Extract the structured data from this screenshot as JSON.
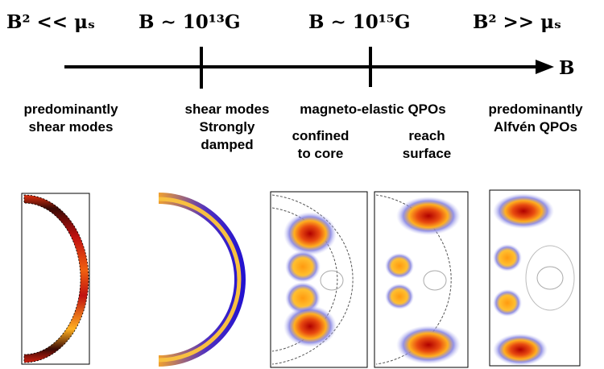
{
  "scale": {
    "regimes": [
      "B² << μₛ",
      "B ∼ 10¹³G",
      "B ∼ 10¹⁵G",
      "B² >> μₛ"
    ],
    "axis_label": "B"
  },
  "labels": [
    {
      "lines": [
        "predominantly",
        "shear modes"
      ]
    },
    {
      "lines": [
        "shear modes",
        "Strongly",
        "damped"
      ]
    },
    {
      "lines": [
        "magneto-elastic QPOs"
      ]
    },
    {
      "lines": [
        "confined",
        "to core"
      ]
    },
    {
      "lines": [
        "reach",
        "surface"
      ]
    },
    {
      "lines": [
        "predominantly",
        "Alfvén QPOs"
      ]
    }
  ]
}
